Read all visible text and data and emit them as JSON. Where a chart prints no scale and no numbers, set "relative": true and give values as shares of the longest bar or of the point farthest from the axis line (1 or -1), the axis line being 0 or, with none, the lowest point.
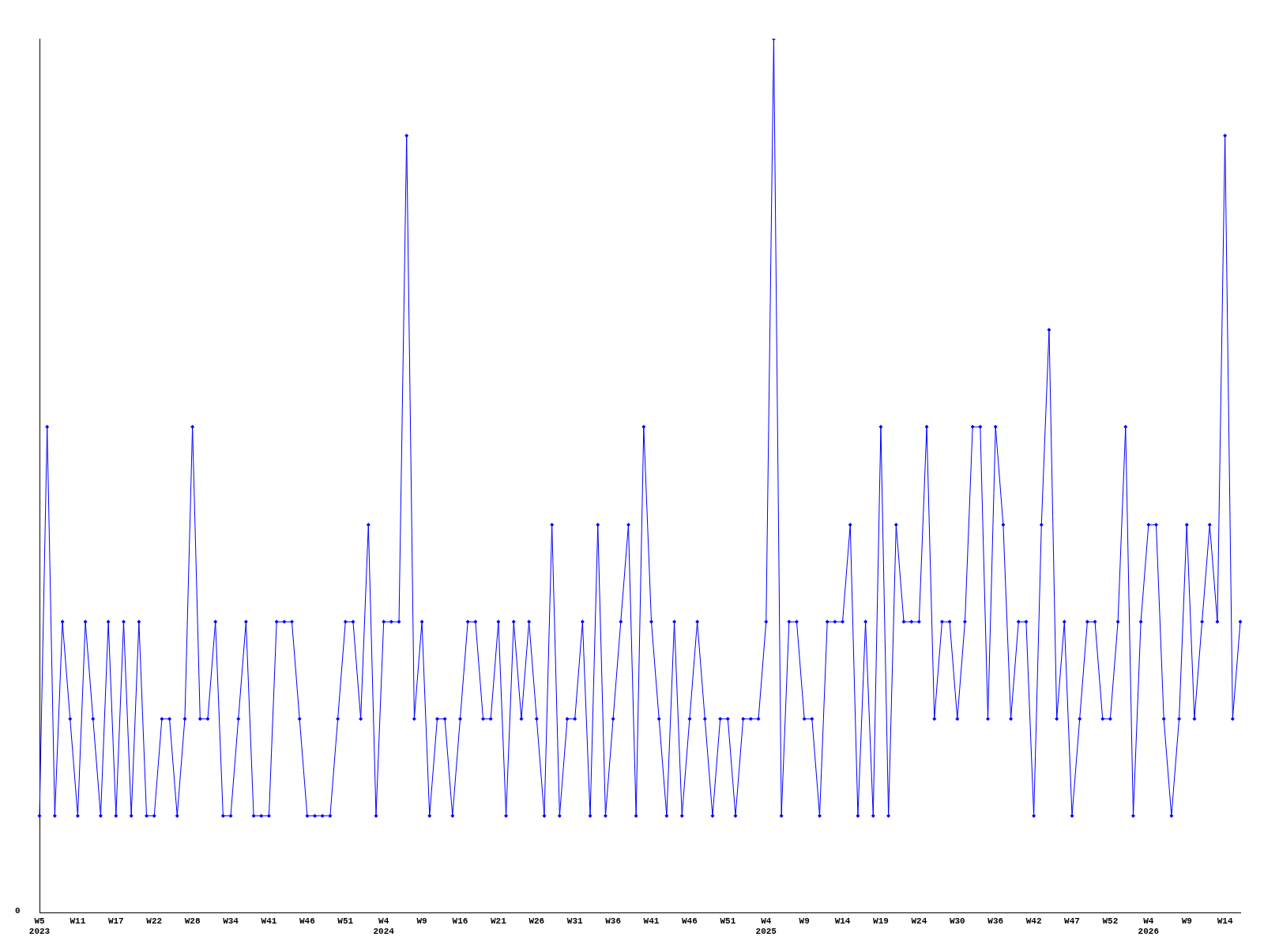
{
  "chart_data": {
    "type": "line",
    "relative": true,
    "annotations": [
      "0"
    ],
    "grid": false,
    "legend": false,
    "marker": "diamond",
    "line_style": "solid",
    "categories": [
      "W5\n2023",
      null,
      null,
      null,
      null,
      "W11",
      null,
      null,
      null,
      null,
      "W17",
      null,
      null,
      null,
      null,
      "W22",
      null,
      null,
      null,
      null,
      "W28",
      null,
      null,
      null,
      null,
      "W34",
      null,
      null,
      null,
      null,
      "W41",
      null,
      null,
      null,
      null,
      "W46",
      null,
      null,
      null,
      null,
      "W51",
      null,
      null,
      null,
      null,
      "W4\n2024",
      null,
      null,
      null,
      null,
      "W9",
      null,
      null,
      null,
      null,
      "W16",
      null,
      null,
      null,
      null,
      "W21",
      null,
      null,
      null,
      null,
      "W26",
      null,
      null,
      null,
      null,
      "W31",
      null,
      null,
      null,
      null,
      "W36",
      null,
      null,
      null,
      null,
      "W41",
      null,
      null,
      null,
      null,
      "W46",
      null,
      null,
      null,
      null,
      "W51",
      null,
      null,
      null,
      null,
      "W4\n2025",
      null,
      null,
      null,
      null,
      "W9",
      null,
      null,
      null,
      null,
      "W14",
      null,
      null,
      null,
      null,
      "W19",
      null,
      null,
      null,
      null,
      "W24",
      null,
      null,
      null,
      null,
      "W30",
      null,
      null,
      null,
      null,
      "W36",
      null,
      null,
      null,
      null,
      "W42",
      null,
      null,
      null,
      null,
      "W47",
      null,
      null,
      null,
      null,
      "W52",
      null,
      null,
      null,
      null,
      "W4\n2026",
      null,
      null,
      null,
      null,
      "W9",
      null,
      null,
      null,
      null,
      "W14",
      null,
      null
    ],
    "series": [
      {
        "color": "#0000ff",
        "values": [
          0.111,
          0.556,
          0.111,
          0.333,
          0.222,
          0.111,
          0.333,
          0.222,
          0.111,
          0.333,
          0.111,
          0.333,
          0.111,
          0.333,
          0.111,
          0.111,
          0.222,
          0.222,
          0.111,
          0.222,
          0.556,
          0.222,
          0.222,
          0.333,
          0.111,
          0.111,
          0.222,
          0.333,
          0.111,
          0.111,
          0.111,
          0.333,
          0.333,
          0.333,
          0.222,
          0.111,
          0.111,
          0.111,
          0.111,
          0.222,
          0.333,
          0.333,
          0.222,
          0.444,
          0.111,
          0.333,
          0.333,
          0.333,
          0.889,
          0.222,
          0.333,
          0.111,
          0.222,
          0.222,
          0.111,
          0.222,
          0.333,
          0.333,
          0.222,
          0.222,
          0.333,
          0.111,
          0.333,
          0.222,
          0.333,
          0.222,
          0.111,
          0.444,
          0.111,
          0.222,
          0.222,
          0.333,
          0.111,
          0.444,
          0.111,
          0.222,
          0.333,
          0.444,
          0.111,
          0.556,
          0.333,
          0.222,
          0.111,
          0.333,
          0.111,
          0.222,
          0.333,
          0.222,
          0.111,
          0.222,
          0.222,
          0.111,
          0.222,
          0.222,
          0.222,
          0.333,
          1,
          0.111,
          0.333,
          0.333,
          0.222,
          0.222,
          0.111,
          0.333,
          0.333,
          0.333,
          0.444,
          0.111,
          0.333,
          0.111,
          0.556,
          0.111,
          0.444,
          0.333,
          0.333,
          0.333,
          0.556,
          0.222,
          0.333,
          0.333,
          0.222,
          0.333,
          0.556,
          0.556,
          0.222,
          0.556,
          0.444,
          0.222,
          0.333,
          0.333,
          0.111,
          0.444,
          0.667,
          0.222,
          0.333,
          0.111,
          0.222,
          0.333,
          0.333,
          0.222,
          0.222,
          0.333,
          0.556,
          0.111,
          0.333,
          0.444,
          0.444,
          0.222,
          0.111,
          0.222,
          0.444,
          0.222,
          0.333,
          0.444,
          0.333,
          0.889,
          0.222,
          0.333
        ]
      }
    ]
  }
}
